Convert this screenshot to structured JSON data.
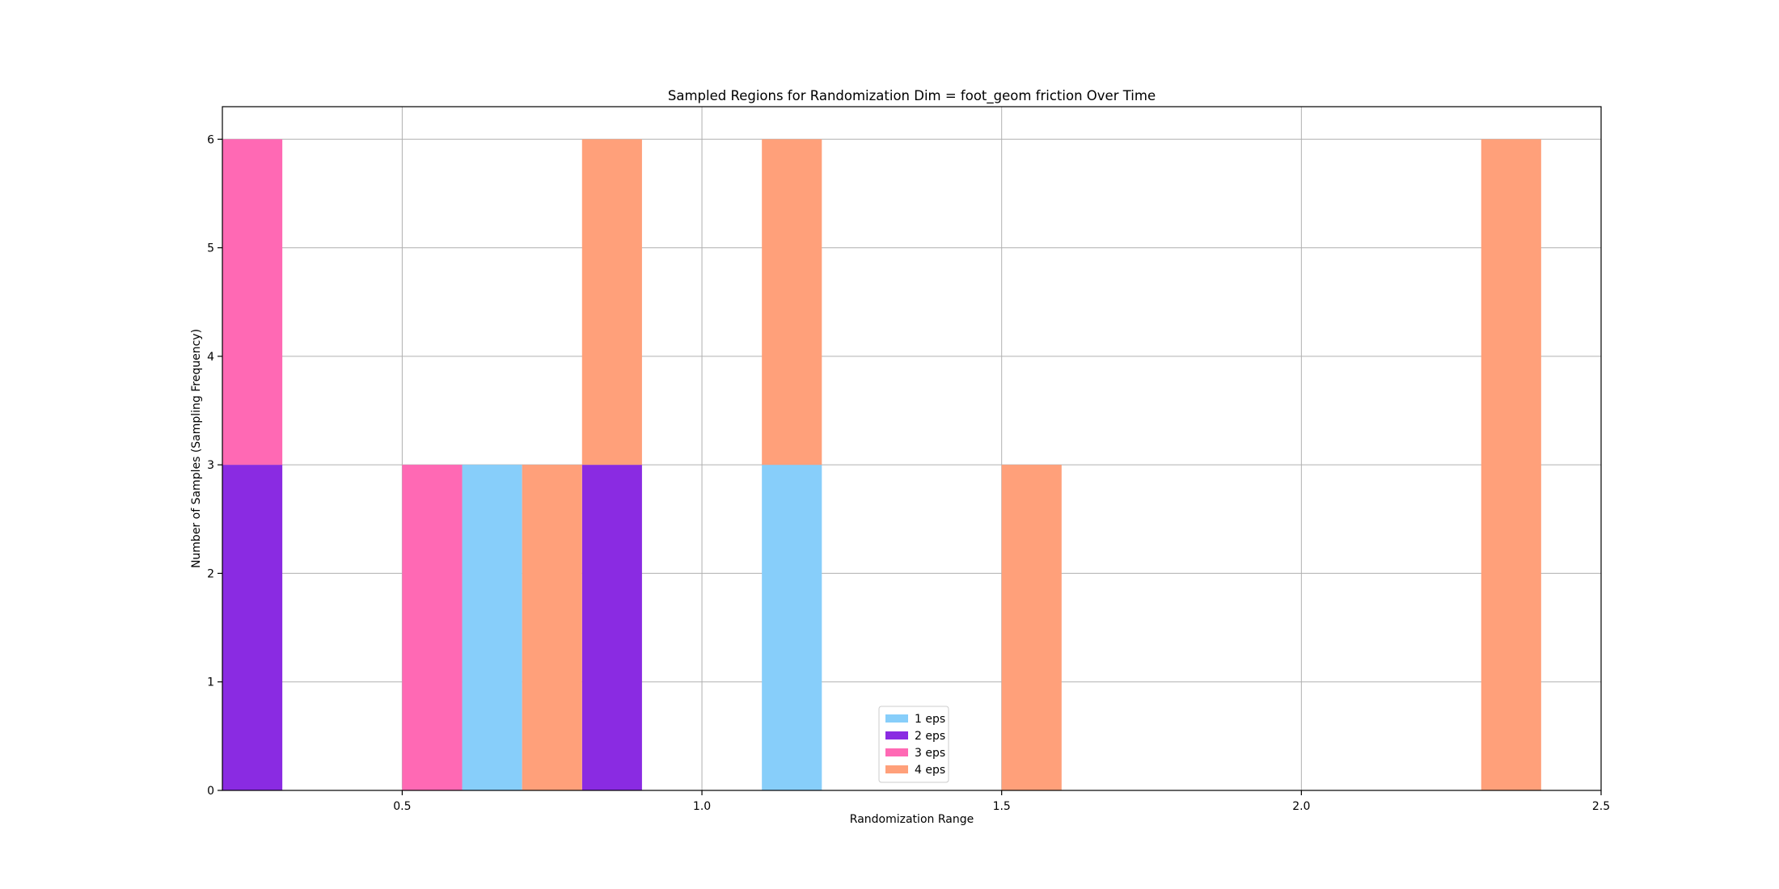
{
  "chart_data": {
    "type": "bar",
    "title": "Sampled Regions for Randomization Dim = foot_geom friction Over Time",
    "xlabel": "Randomization Range",
    "ylabel": "Number of Samples (Sampling Frequency)",
    "xlim": [
      0.2,
      2.5
    ],
    "ylim": [
      0,
      6.3
    ],
    "xticks": [
      0.5,
      1.0,
      1.5,
      2.0,
      2.5
    ],
    "xtick_labels": [
      "0.5",
      "1.0",
      "1.5",
      "2.0",
      "2.5"
    ],
    "yticks": [
      0,
      1,
      2,
      3,
      4,
      5,
      6
    ],
    "ytick_labels": [
      "0",
      "1",
      "2",
      "3",
      "4",
      "5",
      "6"
    ],
    "grid": true,
    "stacked": true,
    "bin_width": 0.1,
    "legend_position": "lower-center",
    "series": [
      {
        "name": "1 eps",
        "color": "#87CEFA",
        "bins": [
          {
            "x0": 0.6,
            "value": 3
          },
          {
            "x0": 1.1,
            "value": 3
          }
        ]
      },
      {
        "name": "2 eps",
        "color": "#8A2BE2",
        "bins": [
          {
            "x0": 0.2,
            "value": 3
          },
          {
            "x0": 0.8,
            "value": 3
          }
        ]
      },
      {
        "name": "3 eps",
        "color": "#FF69B4",
        "bins": [
          {
            "x0": 0.2,
            "value": 3
          },
          {
            "x0": 0.5,
            "value": 3
          }
        ]
      },
      {
        "name": "4 eps",
        "color": "#FFA07A",
        "bins": [
          {
            "x0": 0.7,
            "value": 3
          },
          {
            "x0": 0.8,
            "value": 3
          },
          {
            "x0": 1.1,
            "value": 3
          },
          {
            "x0": 1.5,
            "value": 3
          },
          {
            "x0": 2.3,
            "value": 6
          }
        ]
      }
    ]
  }
}
